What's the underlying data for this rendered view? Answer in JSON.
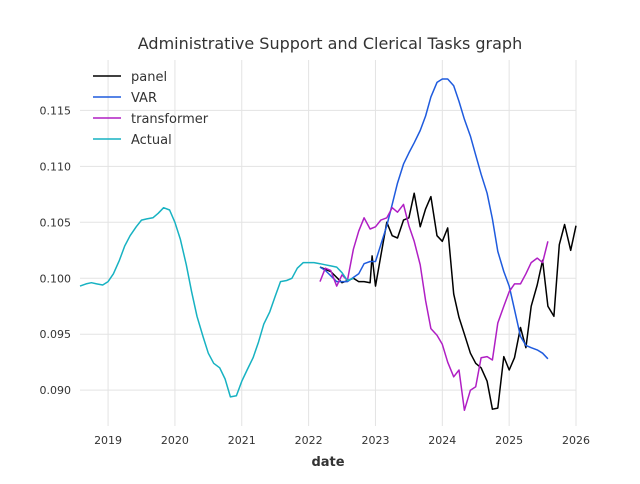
{
  "chart_data": {
    "type": "line",
    "title": "Administrative Support and Clerical Tasks graph",
    "xlabel": "date",
    "ylabel": "",
    "x_ticks": [
      2019,
      2020,
      2021,
      2022,
      2023,
      2024,
      2025,
      2026
    ],
    "x_tick_labels": [
      "2019",
      "2020",
      "2021",
      "2022",
      "2023",
      "2024",
      "2025",
      "2026"
    ],
    "y_ticks": [
      0.09,
      0.095,
      0.1,
      0.105,
      0.11,
      0.115
    ],
    "y_tick_labels": [
      "0.090",
      "0.095",
      "0.100",
      "0.105",
      "0.110",
      "0.115"
    ],
    "xlim": [
      2018.58,
      2026.0
    ],
    "ylim": [
      0.0868,
      0.1195
    ],
    "grid": true,
    "legend_position": "top-left",
    "series": [
      {
        "name": "panel",
        "color": "#000000",
        "points": [
          [
            2022.17,
            0.101
          ],
          [
            2022.33,
            0.1006
          ],
          [
            2022.5,
            0.0996
          ],
          [
            2022.67,
            0.1
          ],
          [
            2022.75,
            0.0997
          ],
          [
            2022.83,
            0.0997
          ],
          [
            2022.92,
            0.0996
          ],
          [
            2022.95,
            0.102
          ],
          [
            2023.0,
            0.0993
          ],
          [
            2023.08,
            0.102
          ],
          [
            2023.17,
            0.105
          ],
          [
            2023.25,
            0.1038
          ],
          [
            2023.33,
            0.1036
          ],
          [
            2023.42,
            0.1052
          ],
          [
            2023.5,
            0.1054
          ],
          [
            2023.58,
            0.1076
          ],
          [
            2023.67,
            0.1046
          ],
          [
            2023.75,
            0.1062
          ],
          [
            2023.83,
            0.1073
          ],
          [
            2023.92,
            0.1038
          ],
          [
            2024.0,
            0.1033
          ],
          [
            2024.08,
            0.1045
          ],
          [
            2024.17,
            0.0986
          ],
          [
            2024.25,
            0.0965
          ],
          [
            2024.33,
            0.095
          ],
          [
            2024.42,
            0.0933
          ],
          [
            2024.5,
            0.0924
          ],
          [
            2024.58,
            0.092
          ],
          [
            2024.67,
            0.0908
          ],
          [
            2024.75,
            0.0883
          ],
          [
            2024.83,
            0.0884
          ],
          [
            2024.92,
            0.093
          ],
          [
            2025.0,
            0.0918
          ],
          [
            2025.08,
            0.0929
          ],
          [
            2025.17,
            0.0956
          ],
          [
            2025.25,
            0.0938
          ],
          [
            2025.33,
            0.0975
          ],
          [
            2025.42,
            0.0994
          ],
          [
            2025.5,
            0.1016
          ],
          [
            2025.58,
            0.0975
          ],
          [
            2025.67,
            0.0966
          ],
          [
            2025.75,
            0.103
          ],
          [
            2025.83,
            0.1048
          ],
          [
            2025.92,
            0.1025
          ],
          [
            2026.0,
            0.1047
          ]
        ]
      },
      {
        "name": "VAR",
        "color": "#1f5bde",
        "points": [
          [
            2022.17,
            0.101
          ],
          [
            2022.25,
            0.1007
          ],
          [
            2022.42,
            0.0997
          ],
          [
            2022.58,
            0.0997
          ],
          [
            2022.75,
            0.1004
          ],
          [
            2022.83,
            0.1013
          ],
          [
            2022.92,
            0.1015
          ],
          [
            2023.0,
            0.1015
          ],
          [
            2023.08,
            0.103
          ],
          [
            2023.17,
            0.1047
          ],
          [
            2023.25,
            0.1066
          ],
          [
            2023.33,
            0.1085
          ],
          [
            2023.42,
            0.1102
          ],
          [
            2023.5,
            0.1112
          ],
          [
            2023.58,
            0.1121
          ],
          [
            2023.67,
            0.1132
          ],
          [
            2023.75,
            0.1145
          ],
          [
            2023.83,
            0.1162
          ],
          [
            2023.92,
            0.1175
          ],
          [
            2024.0,
            0.1178
          ],
          [
            2024.08,
            0.1178
          ],
          [
            2024.17,
            0.1172
          ],
          [
            2024.25,
            0.1158
          ],
          [
            2024.33,
            0.1142
          ],
          [
            2024.42,
            0.1127
          ],
          [
            2024.5,
            0.111
          ],
          [
            2024.58,
            0.1093
          ],
          [
            2024.67,
            0.1076
          ],
          [
            2024.75,
            0.1053
          ],
          [
            2024.83,
            0.1024
          ],
          [
            2024.92,
            0.1006
          ],
          [
            2025.0,
            0.0993
          ],
          [
            2025.08,
            0.0972
          ],
          [
            2025.17,
            0.0948
          ],
          [
            2025.25,
            0.094
          ],
          [
            2025.33,
            0.0938
          ],
          [
            2025.42,
            0.0936
          ],
          [
            2025.5,
            0.0933
          ],
          [
            2025.58,
            0.0928
          ]
        ]
      },
      {
        "name": "transformer",
        "color": "#b01fc4",
        "points": [
          [
            2022.17,
            0.0997
          ],
          [
            2022.25,
            0.1009
          ],
          [
            2022.33,
            0.1007
          ],
          [
            2022.42,
            0.0993
          ],
          [
            2022.5,
            0.1003
          ],
          [
            2022.58,
            0.0998
          ],
          [
            2022.67,
            0.1026
          ],
          [
            2022.75,
            0.1042
          ],
          [
            2022.83,
            0.1054
          ],
          [
            2022.92,
            0.1044
          ],
          [
            2023.0,
            0.1046
          ],
          [
            2023.08,
            0.1052
          ],
          [
            2023.17,
            0.1054
          ],
          [
            2023.25,
            0.1063
          ],
          [
            2023.33,
            0.1059
          ],
          [
            2023.42,
            0.1066
          ],
          [
            2023.5,
            0.1047
          ],
          [
            2023.58,
            0.1033
          ],
          [
            2023.67,
            0.1012
          ],
          [
            2023.75,
            0.098
          ],
          [
            2023.83,
            0.0955
          ],
          [
            2023.92,
            0.0949
          ],
          [
            2024.0,
            0.0941
          ],
          [
            2024.08,
            0.0925
          ],
          [
            2024.17,
            0.0912
          ],
          [
            2024.25,
            0.0918
          ],
          [
            2024.33,
            0.0882
          ],
          [
            2024.42,
            0.09
          ],
          [
            2024.5,
            0.0903
          ],
          [
            2024.58,
            0.0929
          ],
          [
            2024.67,
            0.093
          ],
          [
            2024.75,
            0.0927
          ],
          [
            2024.83,
            0.096
          ],
          [
            2024.92,
            0.0975
          ],
          [
            2025.0,
            0.0988
          ],
          [
            2025.08,
            0.0995
          ],
          [
            2025.17,
            0.0995
          ],
          [
            2025.25,
            0.1004
          ],
          [
            2025.33,
            0.1014
          ],
          [
            2025.42,
            0.1018
          ],
          [
            2025.5,
            0.1014
          ],
          [
            2025.58,
            0.1033
          ]
        ]
      },
      {
        "name": "Actual",
        "color": "#17b2c2",
        "points": [
          [
            2018.58,
            0.0993
          ],
          [
            2018.67,
            0.0995
          ],
          [
            2018.75,
            0.0996
          ],
          [
            2018.83,
            0.0995
          ],
          [
            2018.92,
            0.0994
          ],
          [
            2019.0,
            0.0997
          ],
          [
            2019.08,
            0.1004
          ],
          [
            2019.17,
            0.1016
          ],
          [
            2019.25,
            0.1029
          ],
          [
            2019.33,
            0.1038
          ],
          [
            2019.42,
            0.1046
          ],
          [
            2019.5,
            0.1052
          ],
          [
            2019.58,
            0.1053
          ],
          [
            2019.67,
            0.1054
          ],
          [
            2019.75,
            0.1058
          ],
          [
            2019.83,
            0.1063
          ],
          [
            2019.92,
            0.1061
          ],
          [
            2020.0,
            0.105
          ],
          [
            2020.08,
            0.1035
          ],
          [
            2020.17,
            0.1012
          ],
          [
            2020.25,
            0.0988
          ],
          [
            2020.33,
            0.0966
          ],
          [
            2020.42,
            0.0948
          ],
          [
            2020.5,
            0.0933
          ],
          [
            2020.58,
            0.0924
          ],
          [
            2020.67,
            0.092
          ],
          [
            2020.75,
            0.091
          ],
          [
            2020.83,
            0.0894
          ],
          [
            2020.92,
            0.0895
          ],
          [
            2021.0,
            0.0908
          ],
          [
            2021.08,
            0.0918
          ],
          [
            2021.17,
            0.0929
          ],
          [
            2021.25,
            0.0943
          ],
          [
            2021.33,
            0.0959
          ],
          [
            2021.42,
            0.097
          ],
          [
            2021.5,
            0.0984
          ],
          [
            2021.58,
            0.0997
          ],
          [
            2021.67,
            0.0998
          ],
          [
            2021.75,
            0.1
          ],
          [
            2021.83,
            0.1009
          ],
          [
            2021.92,
            0.1014
          ],
          [
            2022.0,
            0.1014
          ],
          [
            2022.08,
            0.1014
          ],
          [
            2022.17,
            0.1013
          ],
          [
            2022.25,
            0.1012
          ],
          [
            2022.33,
            0.1011
          ],
          [
            2022.42,
            0.101
          ],
          [
            2022.5,
            0.1005
          ],
          [
            2022.58,
            0.0998
          ],
          [
            2022.67,
            0.1
          ]
        ]
      }
    ]
  }
}
